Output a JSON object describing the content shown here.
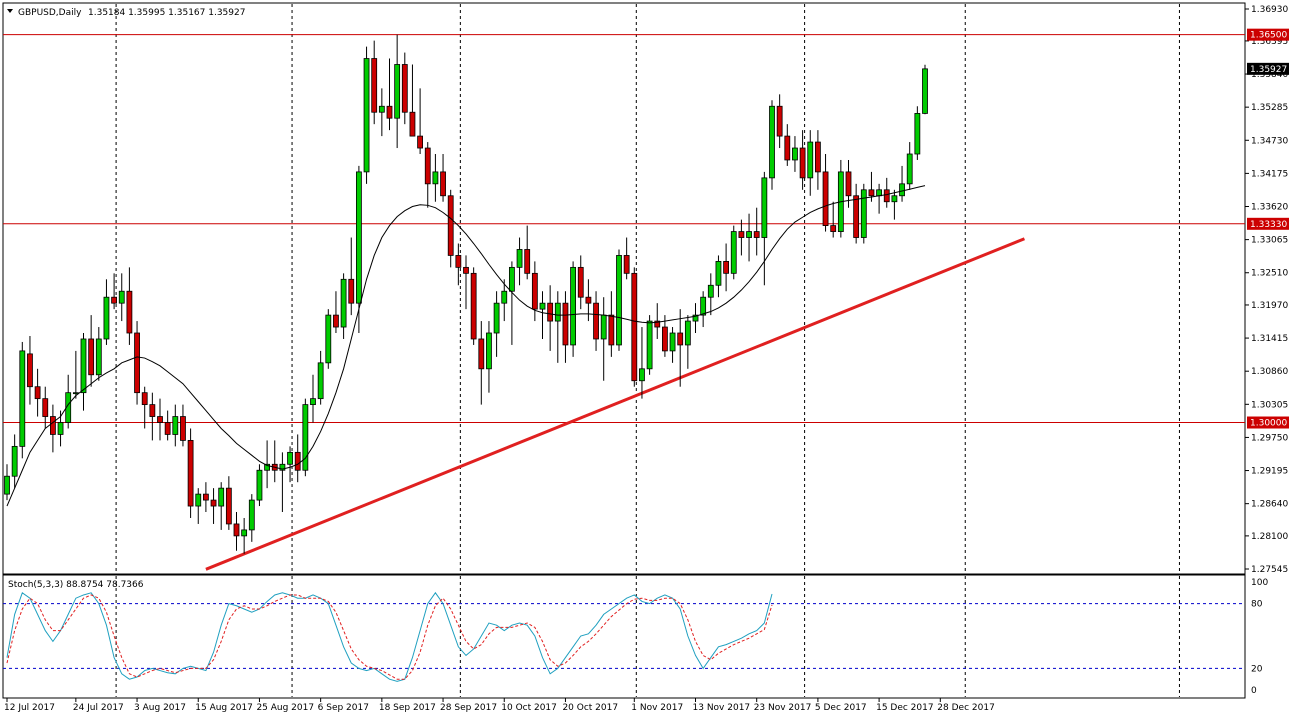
{
  "header": {
    "symbol_label": "GBPUSD,Daily",
    "ohlc": "1.35184 1.35995 1.35167 1.35927"
  },
  "stoch": {
    "label": "Stoch(5,3,3) 88.8754 78.7366",
    "levels": [
      100,
      80,
      20,
      0
    ],
    "main": [
      30,
      70,
      90,
      85,
      70,
      55,
      45,
      55,
      70,
      85,
      88,
      90,
      80,
      60,
      30,
      15,
      10,
      12,
      18,
      20,
      18,
      16,
      15,
      20,
      22,
      20,
      18,
      35,
      60,
      80,
      78,
      75,
      72,
      75,
      82,
      88,
      90,
      88,
      85,
      85,
      88,
      85,
      80,
      60,
      40,
      25,
      20,
      18,
      20,
      15,
      10,
      8,
      10,
      30,
      55,
      80,
      90,
      80,
      60,
      40,
      32,
      38,
      50,
      62,
      60,
      55,
      60,
      62,
      60,
      50,
      30,
      15,
      20,
      30,
      40,
      50,
      52,
      60,
      70,
      75,
      80,
      85,
      88,
      82,
      80,
      85,
      88,
      85,
      75,
      50,
      32,
      20,
      30,
      40,
      42,
      45,
      48,
      52,
      55,
      62,
      88.8754
    ],
    "signal": [
      25,
      55,
      75,
      85,
      80,
      65,
      55,
      55,
      65,
      75,
      85,
      88,
      85,
      72,
      50,
      30,
      15,
      12,
      15,
      18,
      20,
      18,
      16,
      18,
      20,
      20,
      20,
      28,
      45,
      65,
      75,
      78,
      75,
      75,
      78,
      82,
      85,
      88,
      88,
      85,
      85,
      85,
      82,
      72,
      55,
      38,
      28,
      22,
      20,
      18,
      14,
      10,
      10,
      18,
      35,
      60,
      78,
      85,
      75,
      60,
      45,
      38,
      42,
      52,
      58,
      58,
      58,
      60,
      62,
      58,
      45,
      28,
      22,
      25,
      32,
      40,
      45,
      52,
      60,
      68,
      74,
      80,
      84,
      85,
      83,
      83,
      85,
      85,
      80,
      65,
      45,
      32,
      28,
      34,
      38,
      42,
      45,
      48,
      52,
      56,
      78.7366
    ]
  },
  "chart_data": {
    "type": "candlestick",
    "title": "GBPUSD,Daily",
    "y_ticks": [
      "1.36930",
      "1.36395",
      "1.35840",
      "1.35285",
      "1.34730",
      "1.34175",
      "1.33620",
      "1.33065",
      "1.32510",
      "1.31970",
      "1.31415",
      "1.30860",
      "1.30305",
      "1.29750",
      "1.29195",
      "1.28640",
      "1.28100",
      "1.27545"
    ],
    "ylim": [
      1.27545,
      1.3693
    ],
    "x_labels": [
      {
        "label": "12 Jul 2017",
        "index": 0
      },
      {
        "label": "24 Jul 2017",
        "index": 9
      },
      {
        "label": "3 Aug 2017",
        "index": 17
      },
      {
        "label": "15 Aug 2017",
        "index": 25
      },
      {
        "label": "25 Aug 2017",
        "index": 33
      },
      {
        "label": "6 Sep 2017",
        "index": 41
      },
      {
        "label": "18 Sep 2017",
        "index": 49
      },
      {
        "label": "28 Sep 2017",
        "index": 57
      },
      {
        "label": "10 Oct 2017",
        "index": 65
      },
      {
        "label": "20 Oct 2017",
        "index": 73
      },
      {
        "label": "1 Nov 2017",
        "index": 82
      },
      {
        "label": "13 Nov 2017",
        "index": 90
      },
      {
        "label": "23 Nov 2017",
        "index": 98
      },
      {
        "label": "5 Dec 2017",
        "index": 106
      },
      {
        "label": "15 Dec 2017",
        "index": 114
      },
      {
        "label": "28 Dec 2017",
        "index": 122
      }
    ],
    "vertical_grid_indices": [
      14,
      37,
      59,
      82,
      104,
      125,
      153
    ],
    "horizontal_levels": [
      {
        "value": 1.365,
        "label": "1.36500"
      },
      {
        "value": 1.3333,
        "label": "1.33330"
      },
      {
        "value": 1.3,
        "label": "1.30000"
      }
    ],
    "current_price": {
      "value": 1.35927,
      "label": "1.35927"
    },
    "trendline": {
      "from": [
        26,
        1.2754
      ],
      "to": [
        133,
        1.3308
      ]
    },
    "up_color": "#00cc00",
    "down_color": "#cc0000",
    "line_color": "#e02020",
    "ohlc": [
      [
        1.288,
        1.293,
        1.287,
        1.291
      ],
      [
        1.291,
        1.298,
        1.289,
        1.296
      ],
      [
        1.296,
        1.3135,
        1.294,
        1.312
      ],
      [
        1.3115,
        1.3145,
        1.303,
        1.306
      ],
      [
        1.306,
        1.309,
        1.301,
        1.304
      ],
      [
        1.304,
        1.306,
        1.299,
        1.301
      ],
      [
        1.301,
        1.303,
        1.295,
        1.298
      ],
      [
        1.298,
        1.302,
        1.296,
        1.3
      ],
      [
        1.3,
        1.308,
        1.299,
        1.305
      ],
      [
        1.305,
        1.312,
        1.304,
        1.305
      ],
      [
        1.305,
        1.315,
        1.302,
        1.314
      ],
      [
        1.314,
        1.318,
        1.306,
        1.308
      ],
      [
        1.308,
        1.316,
        1.307,
        1.314
      ],
      [
        1.314,
        1.324,
        1.313,
        1.321
      ],
      [
        1.321,
        1.325,
        1.319,
        1.32
      ],
      [
        1.32,
        1.325,
        1.317,
        1.322
      ],
      [
        1.322,
        1.326,
        1.313,
        1.315
      ],
      [
        1.315,
        1.317,
        1.303,
        1.305
      ],
      [
        1.305,
        1.306,
        1.299,
        1.303
      ],
      [
        1.303,
        1.305,
        1.297,
        1.301
      ],
      [
        1.301,
        1.304,
        1.297,
        1.3
      ],
      [
        1.3,
        1.302,
        1.297,
        1.298
      ],
      [
        1.298,
        1.303,
        1.296,
        1.301
      ],
      [
        1.301,
        1.303,
        1.296,
        1.297
      ],
      [
        1.297,
        1.299,
        1.284,
        1.286
      ],
      [
        1.286,
        1.289,
        1.283,
        1.288
      ],
      [
        1.288,
        1.29,
        1.285,
        1.287
      ],
      [
        1.287,
        1.289,
        1.283,
        1.286
      ],
      [
        1.286,
        1.29,
        1.282,
        1.289
      ],
      [
        1.289,
        1.291,
        1.282,
        1.283
      ],
      [
        1.283,
        1.285,
        1.2785,
        1.281
      ],
      [
        1.281,
        1.284,
        1.278,
        1.282
      ],
      [
        1.282,
        1.288,
        1.28,
        1.287
      ],
      [
        1.287,
        1.293,
        1.286,
        1.292
      ],
      [
        1.292,
        1.297,
        1.289,
        1.293
      ],
      [
        1.293,
        1.297,
        1.29,
        1.292
      ],
      [
        1.292,
        1.295,
        1.285,
        1.293
      ],
      [
        1.293,
        1.296,
        1.29,
        1.295
      ],
      [
        1.295,
        1.298,
        1.29,
        1.292
      ],
      [
        1.292,
        1.304,
        1.291,
        1.303
      ],
      [
        1.303,
        1.308,
        1.3,
        1.304
      ],
      [
        1.304,
        1.312,
        1.303,
        1.31
      ],
      [
        1.31,
        1.319,
        1.309,
        1.318
      ],
      [
        1.318,
        1.322,
        1.315,
        1.316
      ],
      [
        1.316,
        1.325,
        1.314,
        1.324
      ],
      [
        1.324,
        1.331,
        1.318,
        1.32
      ],
      [
        1.32,
        1.343,
        1.315,
        1.342
      ],
      [
        1.342,
        1.363,
        1.34,
        1.361
      ],
      [
        1.361,
        1.364,
        1.35,
        1.352
      ],
      [
        1.352,
        1.356,
        1.348,
        1.353
      ],
      [
        1.353,
        1.361,
        1.349,
        1.351
      ],
      [
        1.351,
        1.365,
        1.346,
        1.36
      ],
      [
        1.36,
        1.362,
        1.35,
        1.352
      ],
      [
        1.352,
        1.36,
        1.348,
        1.348
      ],
      [
        1.348,
        1.356,
        1.345,
        1.346
      ],
      [
        1.346,
        1.347,
        1.336,
        1.34
      ],
      [
        1.34,
        1.345,
        1.337,
        1.342
      ],
      [
        1.342,
        1.345,
        1.337,
        1.338
      ],
      [
        1.338,
        1.339,
        1.326,
        1.328
      ],
      [
        1.328,
        1.33,
        1.323,
        1.326
      ],
      [
        1.326,
        1.328,
        1.319,
        1.325
      ],
      [
        1.325,
        1.326,
        1.313,
        1.314
      ],
      [
        1.314,
        1.317,
        1.303,
        1.309
      ],
      [
        1.309,
        1.317,
        1.305,
        1.315
      ],
      [
        1.315,
        1.322,
        1.311,
        1.32
      ],
      [
        1.32,
        1.324,
        1.317,
        1.322
      ],
      [
        1.322,
        1.327,
        1.313,
        1.326
      ],
      [
        1.326,
        1.331,
        1.323,
        1.329
      ],
      [
        1.329,
        1.333,
        1.324,
        1.325
      ],
      [
        1.325,
        1.327,
        1.317,
        1.319
      ],
      [
        1.319,
        1.322,
        1.314,
        1.32
      ],
      [
        1.32,
        1.323,
        1.312,
        1.317
      ],
      [
        1.317,
        1.322,
        1.31,
        1.32
      ],
      [
        1.32,
        1.322,
        1.31,
        1.313
      ],
      [
        1.313,
        1.327,
        1.311,
        1.326
      ],
      [
        1.326,
        1.328,
        1.319,
        1.321
      ],
      [
        1.321,
        1.324,
        1.317,
        1.32
      ],
      [
        1.32,
        1.322,
        1.312,
        1.314
      ],
      [
        1.314,
        1.321,
        1.307,
        1.318
      ],
      [
        1.318,
        1.322,
        1.311,
        1.313
      ],
      [
        1.313,
        1.329,
        1.312,
        1.328
      ],
      [
        1.328,
        1.331,
        1.324,
        1.325
      ],
      [
        1.325,
        1.326,
        1.306,
        1.307
      ],
      [
        1.307,
        1.316,
        1.304,
        1.309
      ],
      [
        1.309,
        1.318,
        1.308,
        1.317
      ],
      [
        1.317,
        1.32,
        1.314,
        1.316
      ],
      [
        1.316,
        1.318,
        1.311,
        1.312
      ],
      [
        1.312,
        1.316,
        1.31,
        1.315
      ],
      [
        1.315,
        1.319,
        1.306,
        1.313
      ],
      [
        1.313,
        1.318,
        1.309,
        1.317
      ],
      [
        1.317,
        1.32,
        1.315,
        1.318
      ],
      [
        1.318,
        1.322,
        1.316,
        1.321
      ],
      [
        1.321,
        1.325,
        1.318,
        1.323
      ],
      [
        1.323,
        1.328,
        1.321,
        1.327
      ],
      [
        1.327,
        1.33,
        1.322,
        1.325
      ],
      [
        1.325,
        1.333,
        1.324,
        1.332
      ],
      [
        1.332,
        1.334,
        1.328,
        1.331
      ],
      [
        1.331,
        1.335,
        1.327,
        1.332
      ],
      [
        1.332,
        1.336,
        1.328,
        1.331
      ],
      [
        1.331,
        1.342,
        1.323,
        1.341
      ],
      [
        1.341,
        1.354,
        1.339,
        1.353
      ],
      [
        1.353,
        1.355,
        1.346,
        1.348
      ],
      [
        1.348,
        1.35,
        1.343,
        1.344
      ],
      [
        1.344,
        1.348,
        1.342,
        1.346
      ],
      [
        1.346,
        1.349,
        1.339,
        1.341
      ],
      [
        1.341,
        1.349,
        1.338,
        1.347
      ],
      [
        1.347,
        1.349,
        1.339,
        1.342
      ],
      [
        1.342,
        1.345,
        1.332,
        1.333
      ],
      [
        1.333,
        1.337,
        1.331,
        1.332
      ],
      [
        1.332,
        1.344,
        1.331,
        1.342
      ],
      [
        1.342,
        1.344,
        1.336,
        1.338
      ],
      [
        1.338,
        1.34,
        1.33,
        1.331
      ],
      [
        1.331,
        1.34,
        1.33,
        1.339
      ],
      [
        1.339,
        1.342,
        1.337,
        1.338
      ],
      [
        1.338,
        1.34,
        1.335,
        1.339
      ],
      [
        1.339,
        1.341,
        1.336,
        1.337
      ],
      [
        1.337,
        1.339,
        1.334,
        1.338
      ],
      [
        1.338,
        1.343,
        1.337,
        1.34
      ],
      [
        1.34,
        1.347,
        1.339,
        1.345
      ],
      [
        1.345,
        1.353,
        1.344,
        1.3518
      ],
      [
        1.3518,
        1.35995,
        1.35167,
        1.35927
      ]
    ],
    "ma": [
      1.286,
      1.289,
      1.292,
      1.295,
      1.297,
      1.299,
      1.3,
      1.301,
      1.303,
      1.3045,
      1.3055,
      1.3065,
      1.3075,
      1.3083,
      1.309,
      1.31,
      1.3105,
      1.311,
      1.3108,
      1.3102,
      1.3095,
      1.3085,
      1.3075,
      1.3065,
      1.305,
      1.3035,
      1.302,
      1.3005,
      1.299,
      1.2978,
      1.2965,
      1.2955,
      1.2945,
      1.2935,
      1.2928,
      1.2925,
      1.2922,
      1.2925,
      1.293,
      1.294,
      1.296,
      1.2985,
      1.3015,
      1.305,
      1.309,
      1.314,
      1.319,
      1.324,
      1.328,
      1.331,
      1.333,
      1.3345,
      1.3355,
      1.3362,
      1.3365,
      1.3364,
      1.336,
      1.3352,
      1.3342,
      1.333,
      1.3316,
      1.33,
      1.3283,
      1.3265,
      1.3248,
      1.3232,
      1.3218,
      1.3205,
      1.3195,
      1.3188,
      1.3184,
      1.3182,
      1.318,
      1.318,
      1.3181,
      1.3182,
      1.3182,
      1.3181,
      1.318,
      1.3178,
      1.3176,
      1.3173,
      1.317,
      1.3168,
      1.3167,
      1.3168,
      1.317,
      1.3172,
      1.3174,
      1.3176,
      1.3178,
      1.3182,
      1.3186,
      1.3192,
      1.32,
      1.321,
      1.3222,
      1.3236,
      1.3252,
      1.327,
      1.329,
      1.3308,
      1.3324,
      1.3336,
      1.3344,
      1.3352,
      1.3358,
      1.3363,
      1.3367,
      1.337,
      1.3372,
      1.3374,
      1.3376,
      1.3378,
      1.338,
      1.3382,
      1.3385,
      1.3388,
      1.3391,
      1.3394,
      1.3397
    ]
  }
}
